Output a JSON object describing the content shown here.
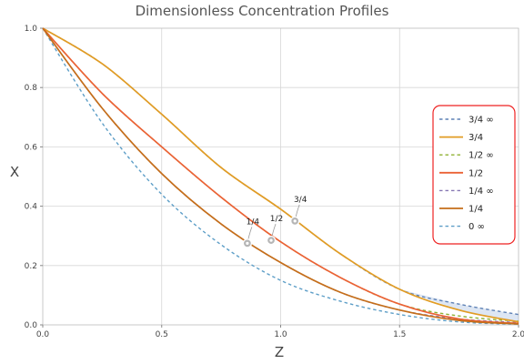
{
  "chart_data": {
    "type": "line",
    "title": "Dimensionless Concentration Profiles",
    "xlabel": "Z",
    "ylabel": "X",
    "xlim": [
      0,
      2
    ],
    "ylim": [
      0,
      1
    ],
    "xticks": [
      0,
      0.5,
      1,
      1.5,
      2
    ],
    "xtick_labels": [
      "0.0",
      "0.5",
      "1.0",
      "1.5",
      "2.0"
    ],
    "yticks": [
      0,
      0.2,
      0.4,
      0.6,
      0.8,
      1
    ],
    "ytick_labels": [
      "0.0",
      "0.2",
      "0.4",
      "0.6",
      "0.8",
      "1.0"
    ],
    "grid": true,
    "legend_position": "right",
    "legend": [
      {
        "label": "3/4 ∞",
        "color": "#5E81B5",
        "dash": true
      },
      {
        "label": "3/4",
        "color": "#E19C24",
        "dash": false
      },
      {
        "label": "1/2 ∞",
        "color": "#8FB032",
        "dash": true
      },
      {
        "label": "1/2",
        "color": "#EB6235",
        "dash": false
      },
      {
        "label": "1/4 ∞",
        "color": "#8778B3",
        "dash": true
      },
      {
        "label": "1/4",
        "color": "#C56E1A",
        "dash": false
      },
      {
        "label": "0 ∞",
        "color": "#5D9EC7",
        "dash": true
      }
    ],
    "series": [
      {
        "name": "3/4 ∞",
        "color": "#5E81B5",
        "dash": true,
        "x": [
          0,
          0.25,
          0.5,
          0.75,
          1.0,
          1.25,
          1.5,
          1.75,
          2.0
        ],
        "y": [
          1.0,
          0.88,
          0.71,
          0.53,
          0.39,
          0.24,
          0.12,
          0.07,
          0.035
        ]
      },
      {
        "name": "3/4",
        "color": "#E19C24",
        "dash": false,
        "x": [
          0,
          0.25,
          0.5,
          0.75,
          1.0,
          1.25,
          1.5,
          1.75,
          2.0
        ],
        "y": [
          1.0,
          0.88,
          0.71,
          0.53,
          0.39,
          0.24,
          0.12,
          0.05,
          0.01
        ]
      },
      {
        "name": "1/2 ∞",
        "color": "#8FB032",
        "dash": true,
        "x": [
          0,
          0.25,
          0.5,
          0.75,
          1.0,
          1.25,
          1.5,
          1.75,
          2.0
        ],
        "y": [
          1.0,
          0.78,
          0.6,
          0.43,
          0.28,
          0.16,
          0.07,
          0.03,
          0.012
        ]
      },
      {
        "name": "1/2",
        "color": "#EB6235",
        "dash": false,
        "x": [
          0,
          0.25,
          0.5,
          0.75,
          1.0,
          1.25,
          1.5,
          1.75,
          2.0
        ],
        "y": [
          1.0,
          0.78,
          0.6,
          0.43,
          0.28,
          0.16,
          0.07,
          0.02,
          0.005
        ]
      },
      {
        "name": "1/4 ∞",
        "color": "#8778B3",
        "dash": true,
        "x": [
          0,
          0.25,
          0.5,
          0.75,
          1.0,
          1.25,
          1.5,
          1.75,
          2.0
        ],
        "y": [
          1.0,
          0.73,
          0.51,
          0.34,
          0.21,
          0.11,
          0.05,
          0.02,
          0.008
        ]
      },
      {
        "name": "1/4",
        "color": "#C56E1A",
        "dash": false,
        "x": [
          0,
          0.25,
          0.5,
          0.75,
          1.0,
          1.25,
          1.5,
          1.75,
          2.0
        ],
        "y": [
          1.0,
          0.73,
          0.51,
          0.34,
          0.21,
          0.11,
          0.05,
          0.015,
          0.003
        ]
      },
      {
        "name": "0 ∞",
        "color": "#5D9EC7",
        "dash": true,
        "x": [
          0,
          0.25,
          0.5,
          0.75,
          1.0,
          1.25,
          1.5,
          1.75,
          2.0
        ],
        "y": [
          1.0,
          0.68,
          0.44,
          0.27,
          0.15,
          0.08,
          0.035,
          0.01,
          0.002
        ]
      }
    ],
    "annotations": [
      {
        "label": "3/4",
        "x": 1.06,
        "y": 0.35,
        "color": "#E19C24"
      },
      {
        "label": "1/2",
        "x": 0.96,
        "y": 0.285,
        "color": "#EB6235"
      },
      {
        "label": "1/4",
        "x": 0.86,
        "y": 0.275,
        "color": "#C56E1A"
      }
    ]
  }
}
